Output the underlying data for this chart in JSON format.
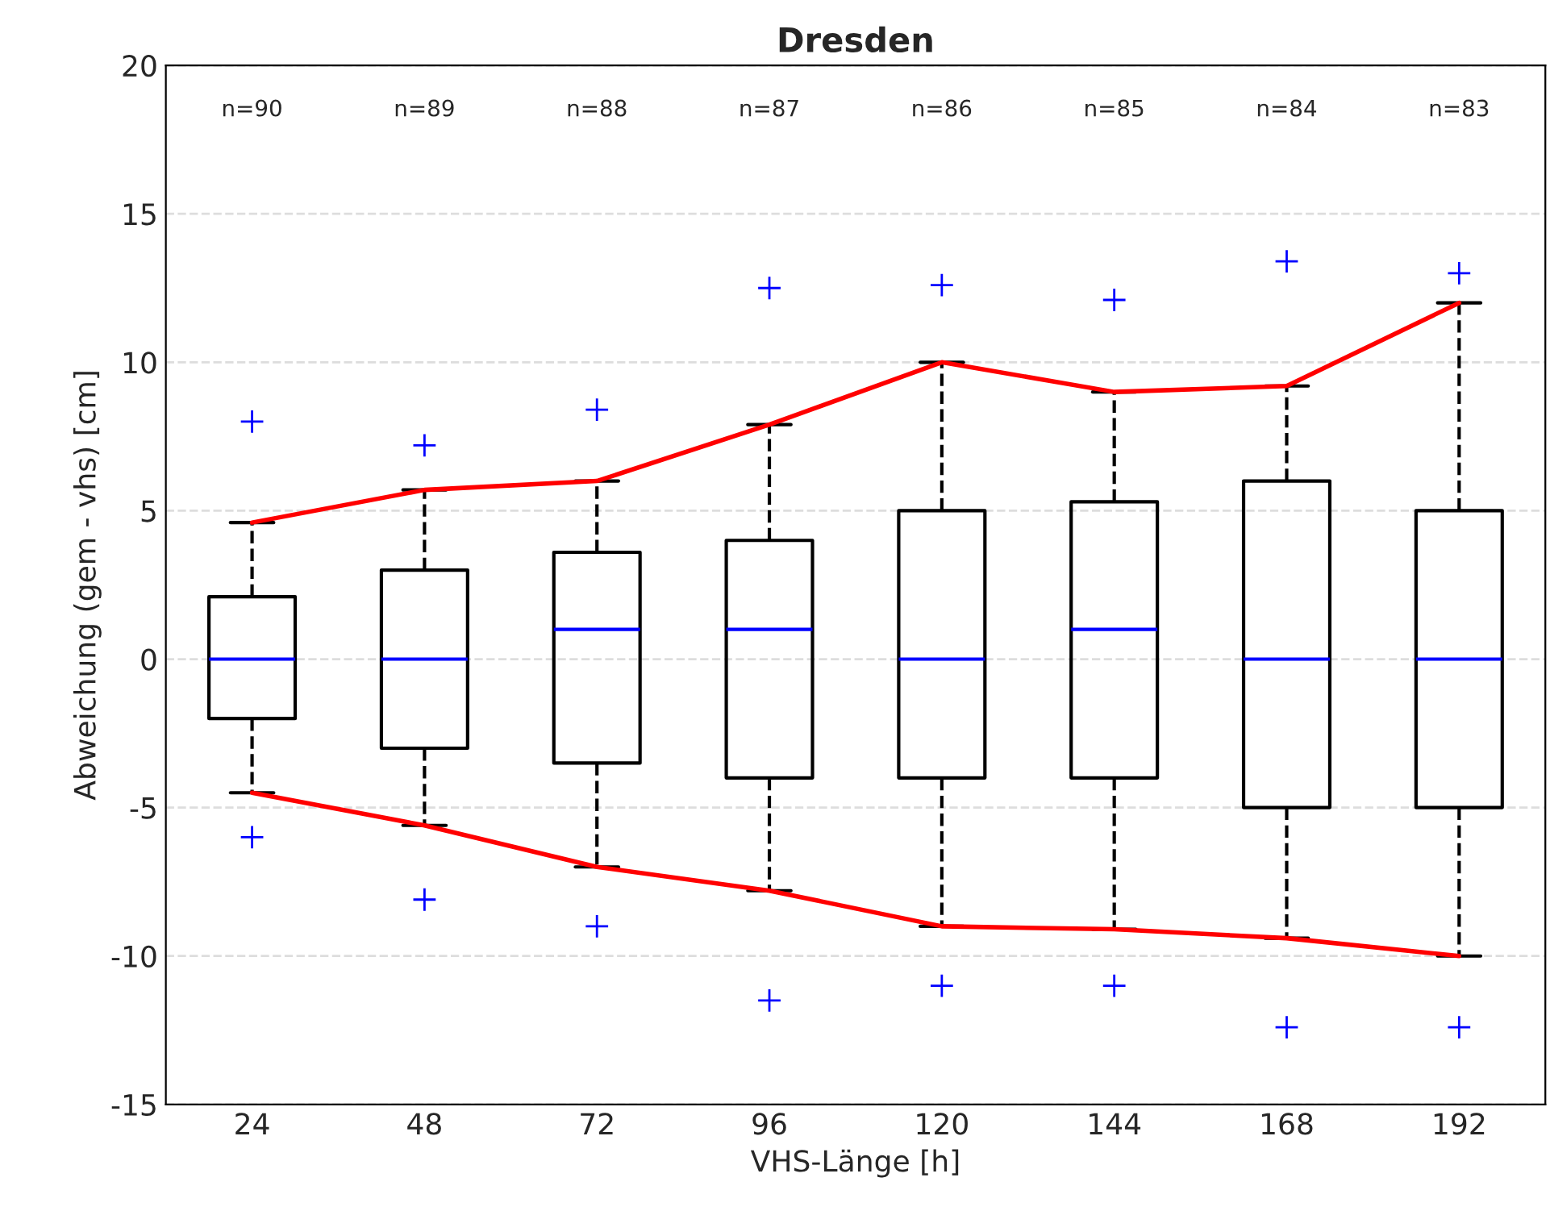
{
  "chart_data": {
    "type": "box",
    "title": "Dresden",
    "xlabel": "VHS-Länge [h]",
    "ylabel": "Abweichung (gem - vhs) [cm]",
    "categories": [
      "24",
      "48",
      "72",
      "96",
      "120",
      "144",
      "168",
      "192"
    ],
    "ylim": [
      -15,
      20
    ],
    "yticks": [
      -15,
      -10,
      -5,
      0,
      5,
      10,
      15,
      20
    ],
    "grid": "y",
    "series": [
      {
        "color": "#000000",
        "boxes": [
          {
            "low": -4.5,
            "q1": -2,
            "median": 0,
            "q3": 2.1,
            "high": 4.6,
            "outliers": [
              8,
              -6
            ]
          },
          {
            "low": -5.6,
            "q1": -3,
            "median": 0,
            "q3": 3,
            "high": 5.7,
            "outliers": [
              7.2,
              -8.1
            ]
          },
          {
            "low": -7,
            "q1": -3.5,
            "median": 1,
            "q3": 3.6,
            "high": 6,
            "outliers": [
              8.4,
              -9
            ]
          },
          {
            "low": -7.8,
            "q1": -4,
            "median": 1,
            "q3": 4,
            "high": 7.9,
            "outliers": [
              12.5,
              -11.5
            ]
          },
          {
            "low": -9,
            "q1": -4,
            "median": 0,
            "q3": 5,
            "high": 10,
            "outliers": [
              12.6,
              -11
            ]
          },
          {
            "low": -9.1,
            "q1": -4,
            "median": 1,
            "q3": 5.3,
            "high": 9,
            "outliers": [
              12.1,
              -11
            ]
          },
          {
            "low": -9.4,
            "q1": -5,
            "median": 0,
            "q3": 6,
            "high": 9.2,
            "outliers": [
              13.4,
              -12.4
            ]
          },
          {
            "low": -10,
            "q1": -5,
            "median": 0,
            "q3": 5,
            "high": 12,
            "outliers": [
              13,
              -12.4
            ]
          }
        ]
      },
      {
        "type": "line",
        "color": "#ff0000",
        "values": [
          4.6,
          5.7,
          6,
          7.9,
          10,
          9,
          9.2,
          12
        ]
      },
      {
        "type": "line",
        "color": "#ff0000",
        "values": [
          -4.5,
          -5.6,
          -7,
          -7.8,
          -9,
          -9.1,
          -9.4,
          -10
        ]
      }
    ],
    "annotations": [
      "n=90",
      "n=89",
      "n=88",
      "n=87",
      "n=86",
      "n=85",
      "n=84",
      "n=83"
    ]
  }
}
